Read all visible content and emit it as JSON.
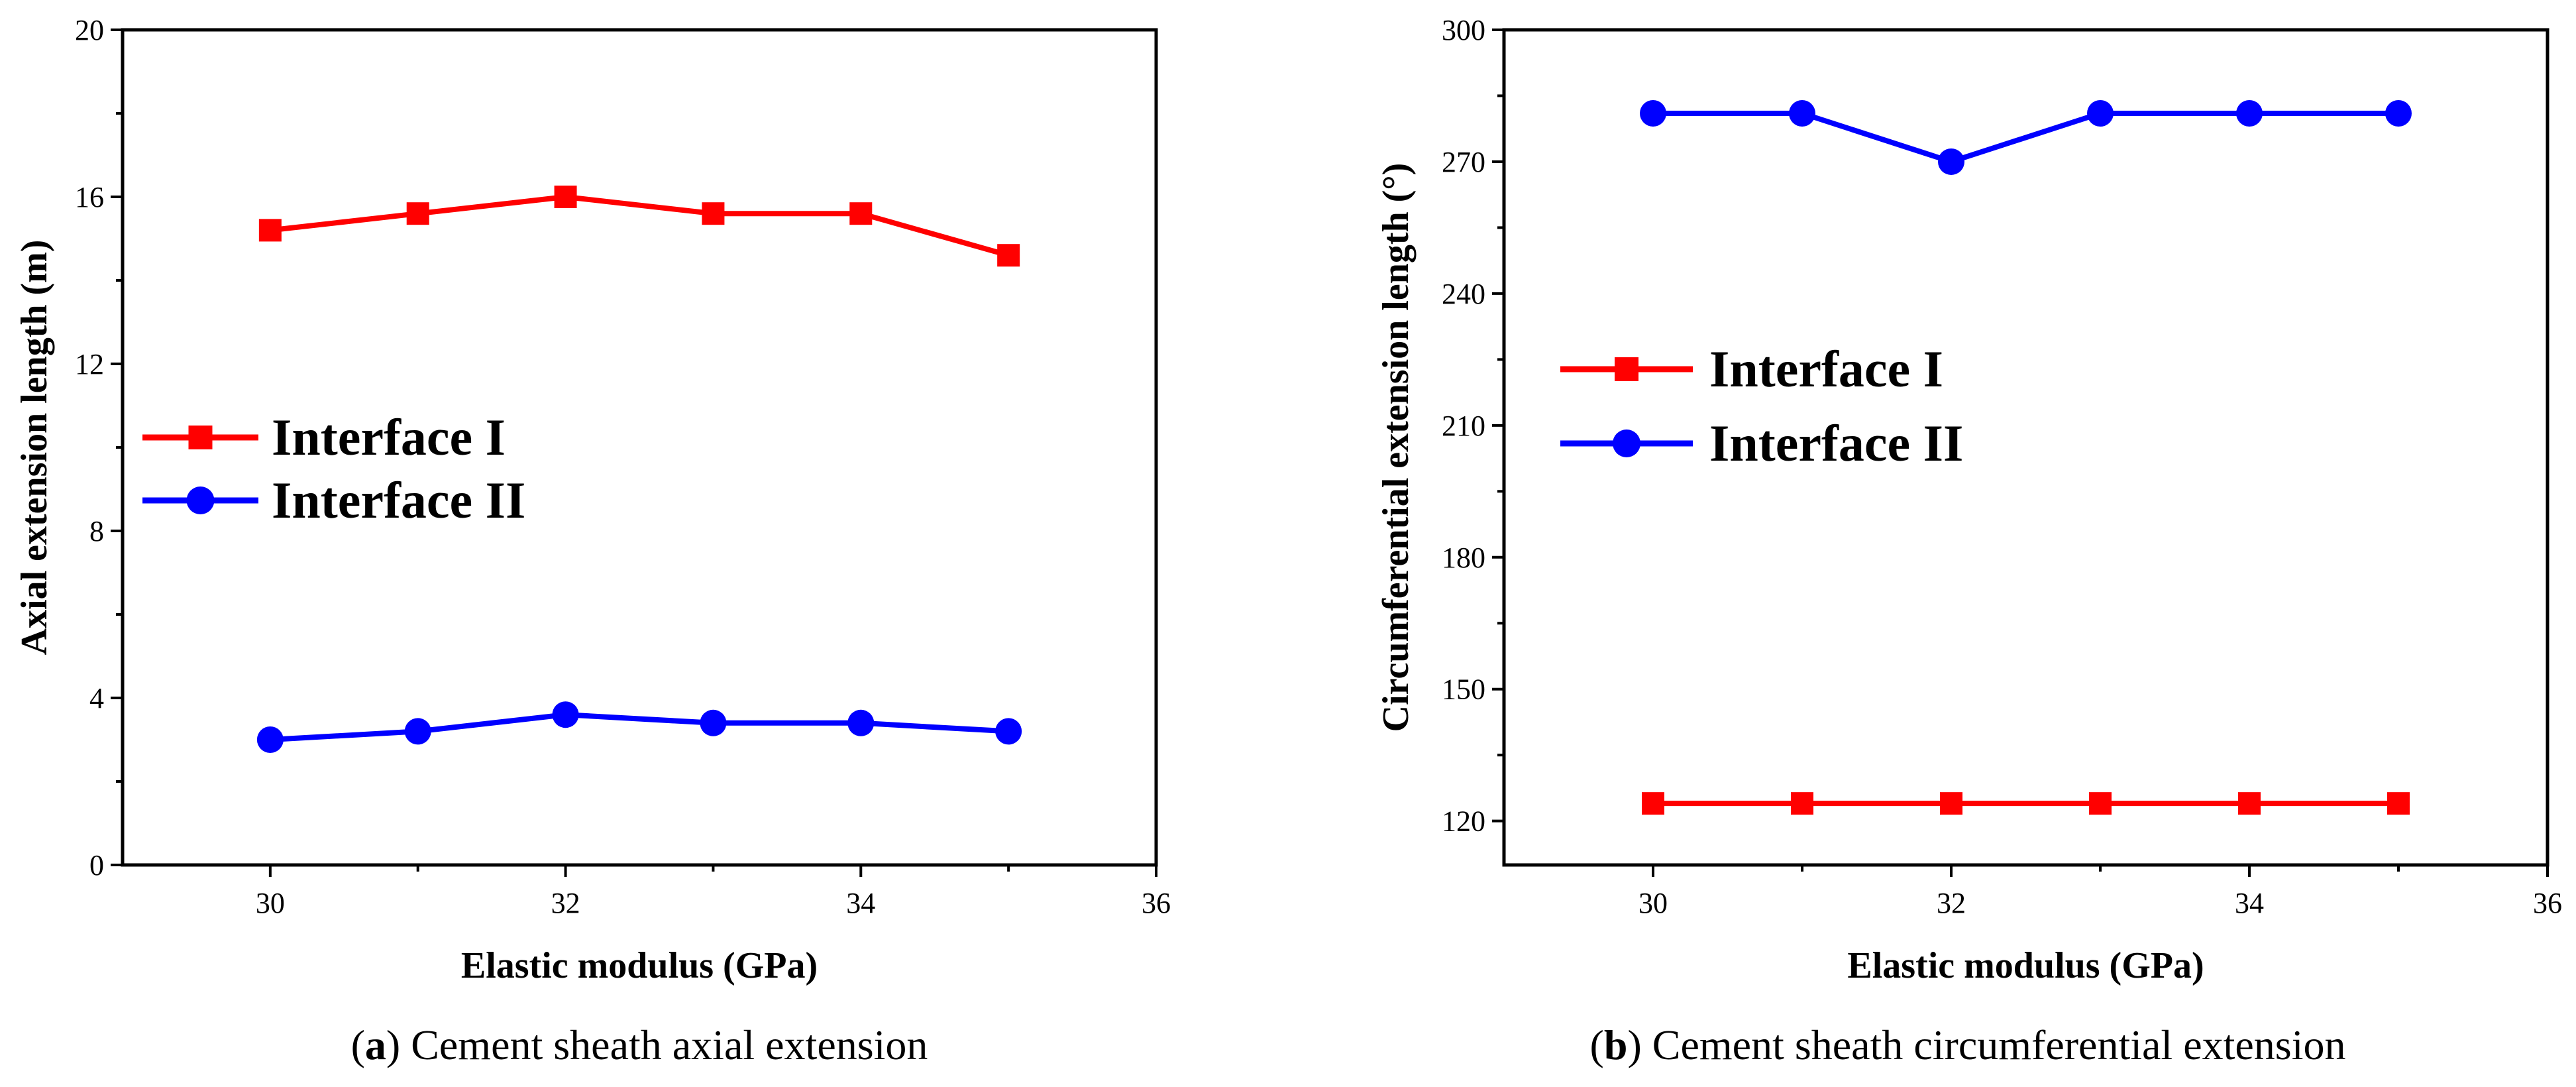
{
  "chart_data": [
    {
      "type": "line",
      "title": "",
      "xlabel": "Elastic modulus (GPa)",
      "ylabel": "Axial extension length (m)",
      "xlim": [
        29,
        36
      ],
      "ylim": [
        0,
        20
      ],
      "xticks": [
        30,
        32,
        34,
        36
      ],
      "yticks": [
        0,
        4,
        8,
        12,
        16,
        20
      ],
      "x": [
        30,
        31,
        32,
        33,
        34,
        35
      ],
      "series": [
        {
          "name": "Interface I",
          "color": "#ff0000",
          "marker": "square",
          "values": [
            15.2,
            15.6,
            16.0,
            15.6,
            15.6,
            14.6
          ]
        },
        {
          "name": "Interface II",
          "color": "#0000ff",
          "marker": "circle",
          "values": [
            3.0,
            3.2,
            3.6,
            3.4,
            3.4,
            3.2
          ]
        }
      ],
      "legend_position": "center-left",
      "caption": {
        "label": "a",
        "text": "Cement sheath axial extension"
      }
    },
    {
      "type": "line",
      "title": "",
      "xlabel": "Elastic modulus (GPa)",
      "ylabel": "Circumferential extension length (°)",
      "xlim": [
        29,
        36
      ],
      "ylim": [
        110,
        300
      ],
      "xticks": [
        30,
        32,
        34,
        36
      ],
      "yticks": [
        120,
        150,
        180,
        210,
        240,
        270,
        300
      ],
      "x": [
        30,
        31,
        32,
        33,
        34,
        35
      ],
      "series": [
        {
          "name": "Interface I",
          "color": "#ff0000",
          "marker": "square",
          "values": [
            124,
            124,
            124,
            124,
            124,
            124
          ]
        },
        {
          "name": "Interface II",
          "color": "#0000ff",
          "marker": "circle",
          "values": [
            281,
            281,
            270,
            281,
            281,
            281
          ]
        }
      ],
      "legend_position": "upper-left",
      "caption": {
        "label": "b",
        "text": "Cement sheath circumferential extension"
      }
    }
  ]
}
